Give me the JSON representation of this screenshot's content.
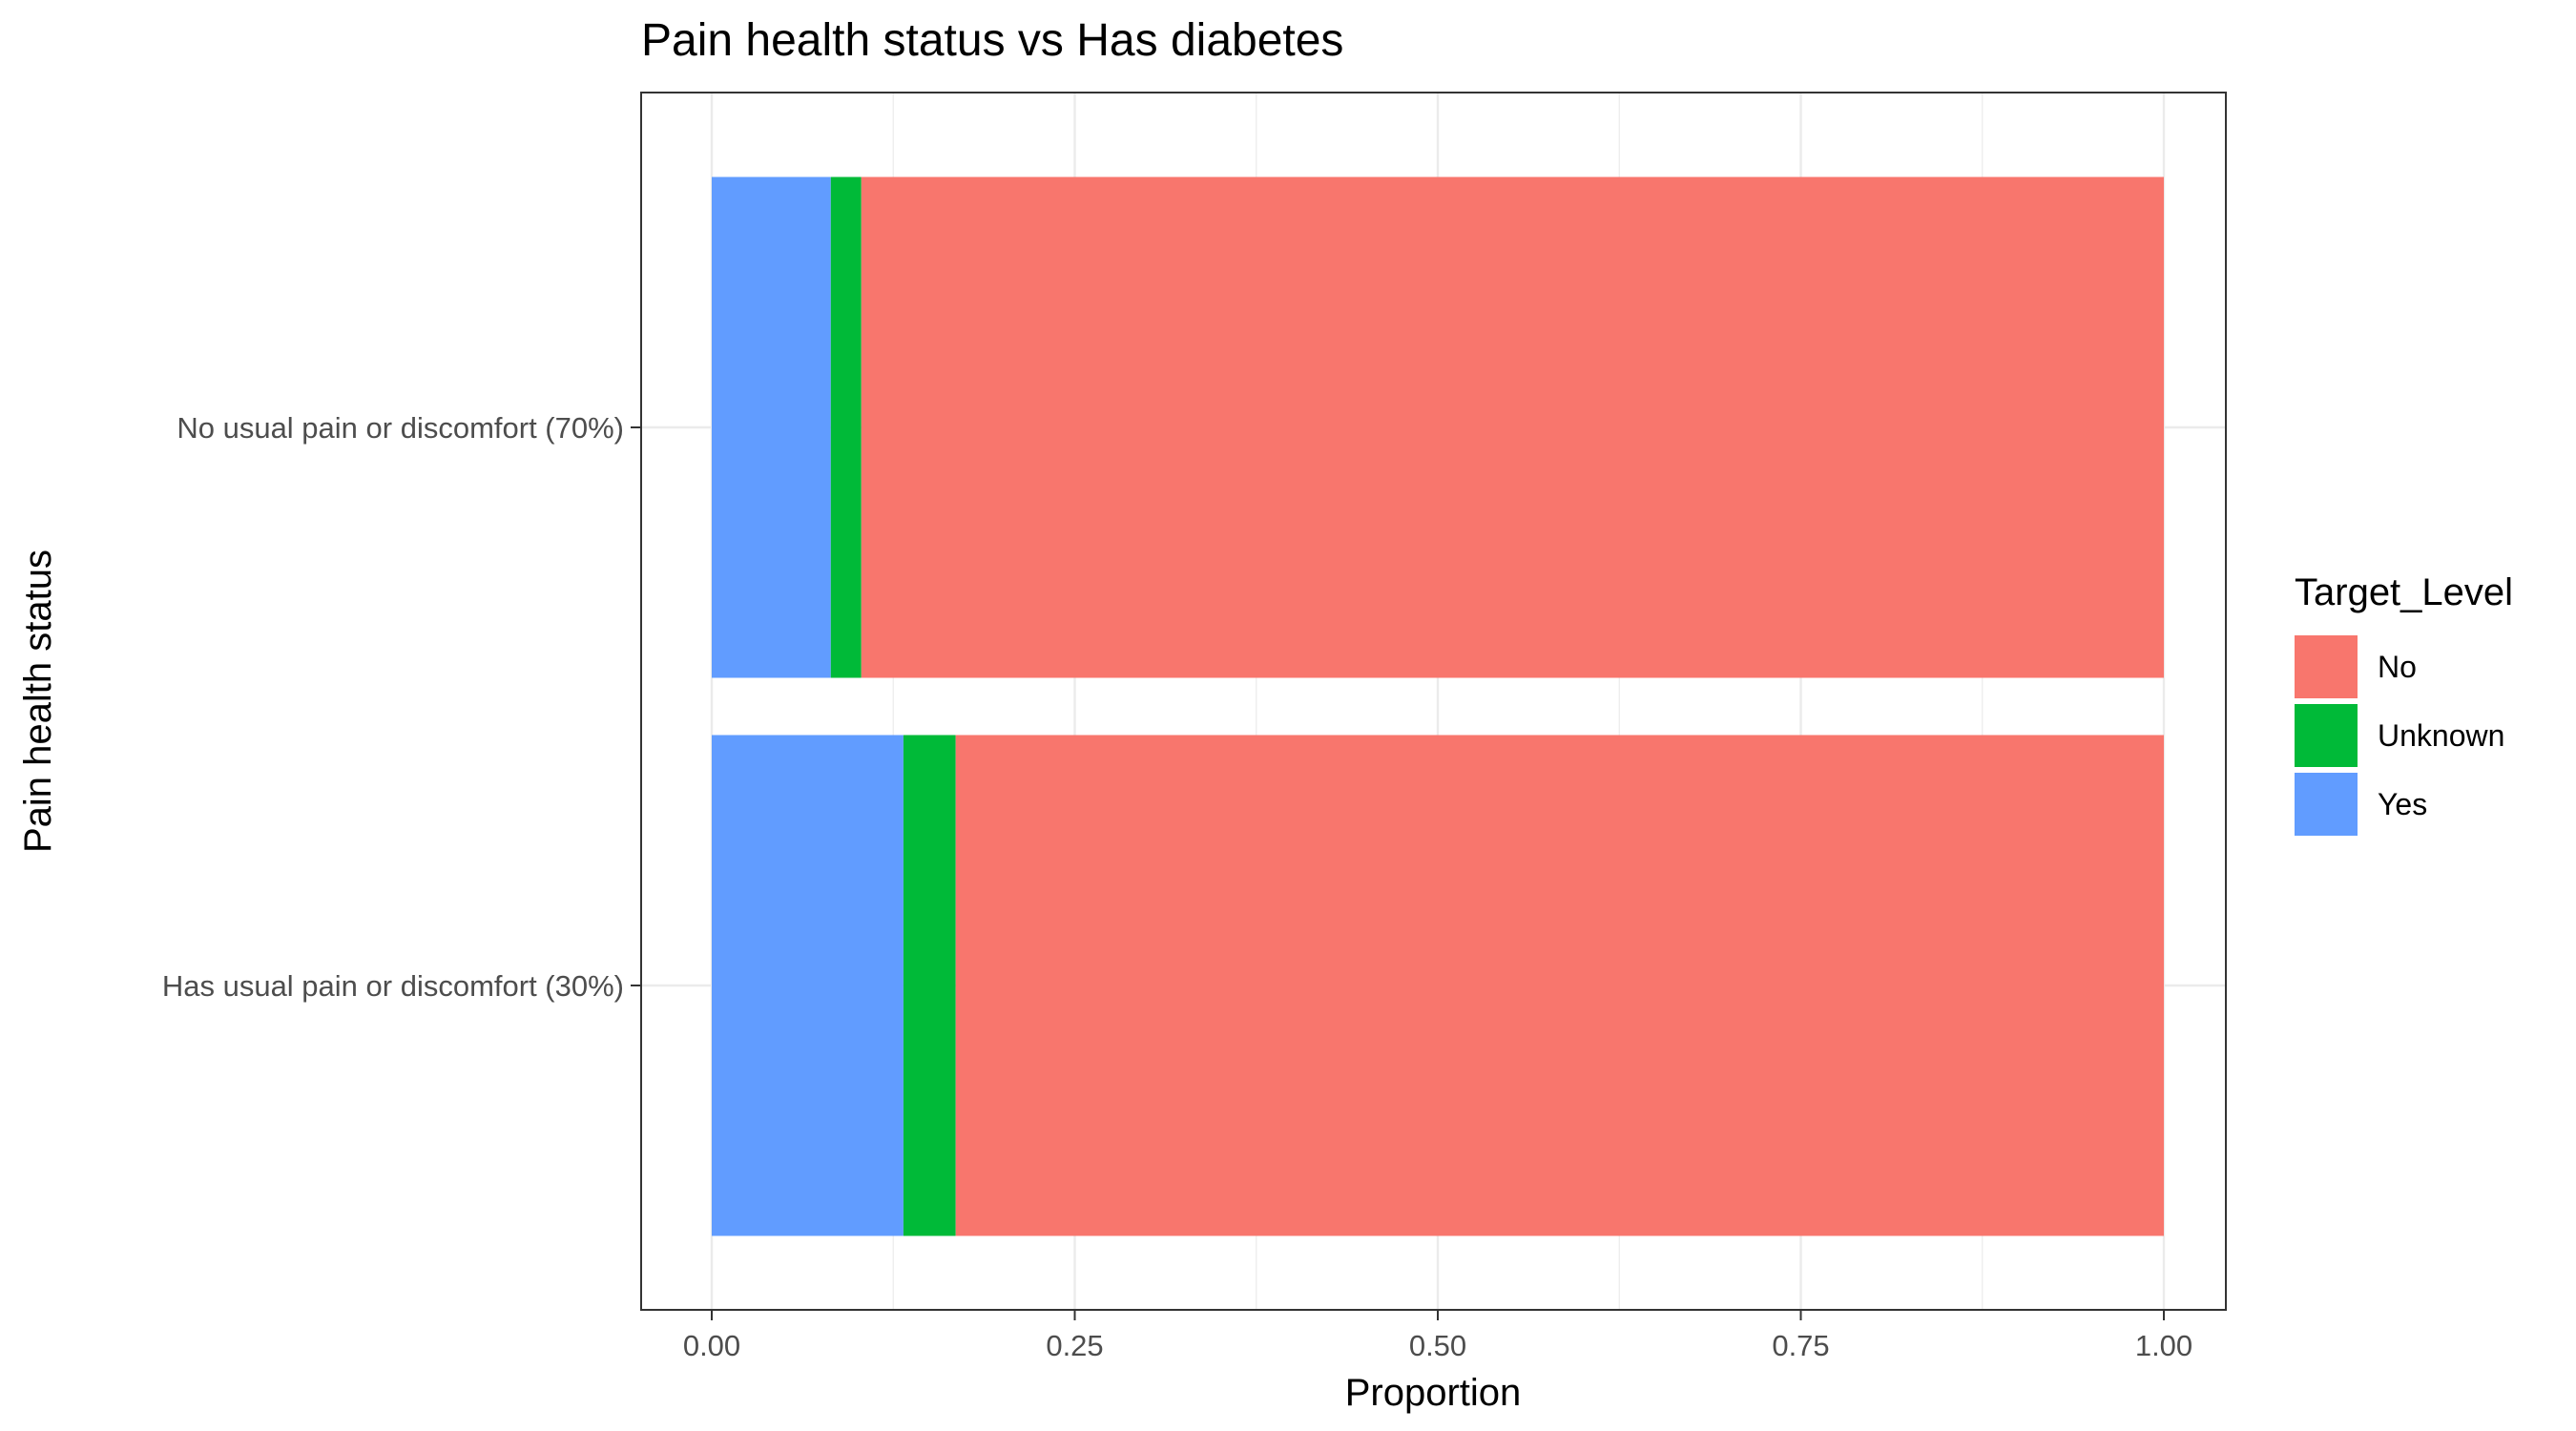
{
  "chart_data": {
    "type": "bar",
    "orientation": "horizontal",
    "stacked": true,
    "title": "Pain health status vs Has diabetes",
    "xlabel": "Proportion",
    "ylabel": "Pain health status",
    "xlim": [
      0,
      1
    ],
    "x_ticks": [
      "0.00",
      "0.25",
      "0.50",
      "0.75",
      "1.00"
    ],
    "x_tick_values": [
      0,
      0.25,
      0.5,
      0.75,
      1
    ],
    "categories": [
      "No usual pain or discomfort (70%)",
      "Has usual pain or discomfort (30%)"
    ],
    "series": [
      {
        "name": "Yes",
        "color": "#619CFF",
        "values": [
          0.082,
          0.132
        ]
      },
      {
        "name": "Unknown",
        "color": "#00BA38",
        "values": [
          0.021,
          0.036
        ]
      },
      {
        "name": "No",
        "color": "#F8766D",
        "values": [
          0.897,
          0.832
        ]
      }
    ],
    "legend": {
      "title": "Target_Level",
      "position": "right",
      "entries": [
        {
          "label": "No",
          "color": "#F8766D"
        },
        {
          "label": "Unknown",
          "color": "#00BA38"
        },
        {
          "label": "Yes",
          "color": "#619CFF"
        }
      ]
    },
    "grid": true
  }
}
